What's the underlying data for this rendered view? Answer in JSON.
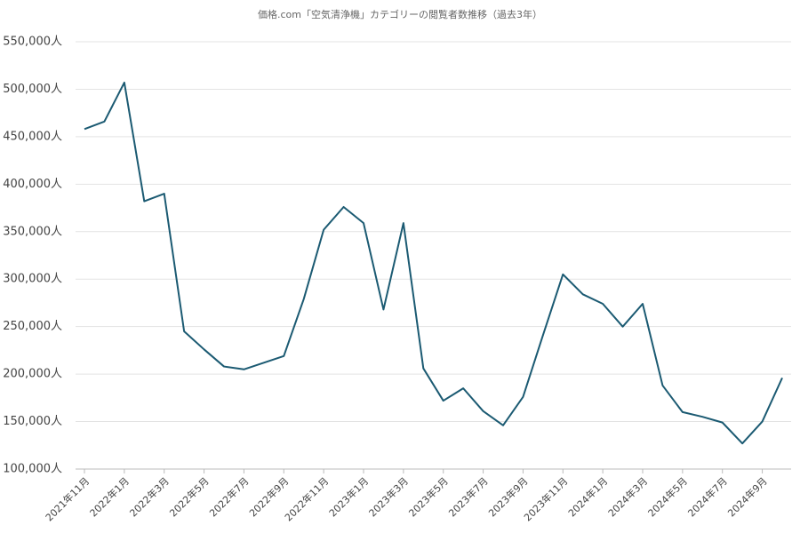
{
  "chart_data": {
    "type": "line",
    "title": "価格.com「空気清浄機」カテゴリーの閲覧者数推移（過去3年）",
    "categories": [
      "2021年11月",
      null,
      "2022年1月",
      null,
      "2022年3月",
      null,
      "2022年5月",
      null,
      "2022年7月",
      null,
      "2022年9月",
      null,
      "2022年11月",
      null,
      "2023年1月",
      null,
      "2023年3月",
      null,
      "2023年5月",
      null,
      "2023年7月",
      null,
      "2023年9月",
      null,
      "2023年11月",
      null,
      "2024年1月",
      null,
      "2024年3月",
      null,
      "2024年5月",
      null,
      "2024年7月",
      null,
      "2024年9月",
      null
    ],
    "series": [
      {
        "name": "閲覧者数",
        "color": "#1b5a72",
        "values": [
          458000,
          466000,
          507000,
          382000,
          390000,
          245000,
          226000,
          208000,
          205000,
          212000,
          219000,
          279000,
          352000,
          376000,
          359000,
          268000,
          359000,
          206000,
          172000,
          185000,
          161000,
          146000,
          176000,
          241000,
          305000,
          284000,
          274000,
          250000,
          274000,
          188000,
          160000,
          155000,
          149000,
          127000,
          150000,
          196000
        ]
      }
    ],
    "ylim": [
      100000,
      550000
    ],
    "yticks": [
      {
        "value": 100000,
        "label": "100,000人"
      },
      {
        "value": 150000,
        "label": "150,000人"
      },
      {
        "value": 200000,
        "label": "200,000人"
      },
      {
        "value": 250000,
        "label": "250,000人"
      },
      {
        "value": 300000,
        "label": "300,000人"
      },
      {
        "value": 350000,
        "label": "350,000人"
      },
      {
        "value": 400000,
        "label": "400,000人"
      },
      {
        "value": 450000,
        "label": "450,000人"
      },
      {
        "value": 500000,
        "label": "500,000人"
      },
      {
        "value": 550000,
        "label": "550,000人"
      }
    ],
    "grid": true
  }
}
